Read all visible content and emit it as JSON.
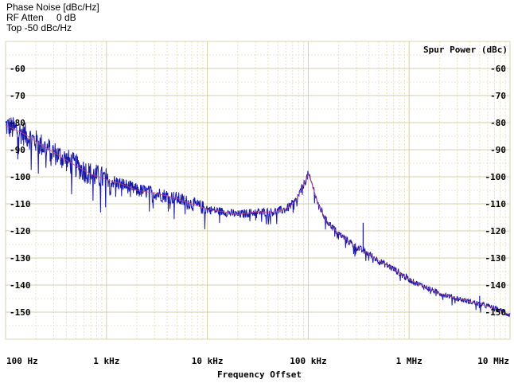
{
  "header": {
    "line1": "Phase Noise [dBc/Hz]",
    "line2_label": "RF Atten",
    "line2_value": "0 dB",
    "line3": "Top -50 dBc/Hz"
  },
  "chart_data": {
    "type": "line",
    "title": "",
    "xlabel": "Frequency Offset",
    "ylabel": "Spur Power (dBc)",
    "xscale": "log",
    "xlim": [
      100,
      10000000
    ],
    "ylim": [
      -160,
      -50
    ],
    "x_tick_values": [
      100,
      1000,
      10000,
      100000,
      1000000,
      10000000
    ],
    "x_tick_labels": [
      "100 Hz",
      "1 kHz",
      "10 kHz",
      "100 kHz",
      "1 MHz",
      "10 MHz"
    ],
    "y_tick_values": [
      -60,
      -70,
      -80,
      -90,
      -100,
      -110,
      -120,
      -130,
      -140,
      -150
    ],
    "y_tick_labels": [
      "-60",
      "-70",
      "-80",
      "-90",
      "-100",
      "-110",
      "-120",
      "-130",
      "-140",
      "-150"
    ],
    "grid": true,
    "series": [
      {
        "color": "#1a1aa8",
        "trace_color": "#1a1aa8",
        "smooth_color": "#d0457a",
        "x": [
          100,
          150,
          200,
          300,
          500,
          700,
          1000,
          1500,
          2000,
          3000,
          5000,
          7000,
          10000,
          15000,
          20000,
          30000,
          45000,
          60000,
          75000,
          85000,
          95000,
          100000,
          110000,
          125000,
          150000,
          200000,
          300000,
          400000,
          500000,
          700000,
          1000000,
          1500000,
          2000000,
          3000000,
          5000000,
          7000000,
          10000000
        ],
        "values": [
          -81,
          -84,
          -87,
          -91,
          -96,
          -99,
          -101,
          -103,
          -105,
          -106,
          -108,
          -110,
          -112,
          -113,
          -114,
          -113,
          -113,
          -112,
          -109,
          -105,
          -101,
          -99,
          -103,
          -110,
          -116,
          -121,
          -126,
          -128.5,
          -131,
          -134,
          -138,
          -141,
          -143,
          -145,
          -147,
          -148.5,
          -151
        ]
      }
    ],
    "spurs": [
      {
        "x": 350000,
        "value": -117
      },
      {
        "x": 2300000,
        "value": -143
      },
      {
        "x": 5000000,
        "value": -144
      }
    ]
  }
}
